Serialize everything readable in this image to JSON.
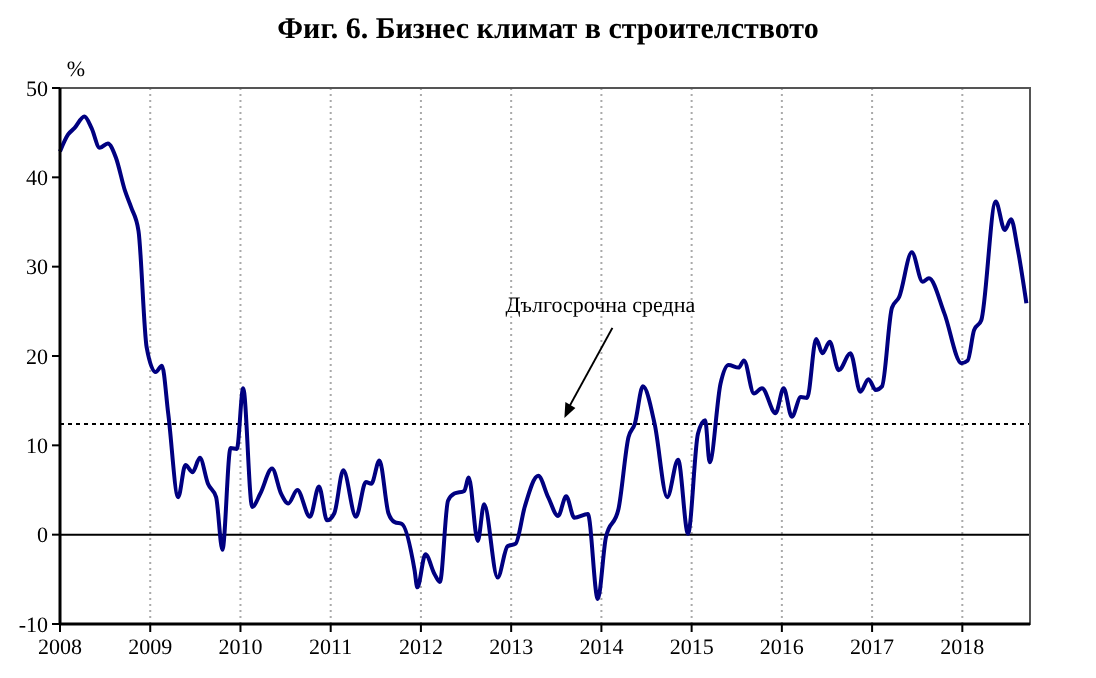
{
  "chart_data": {
    "type": "line",
    "title": "Фиг. 6. Бизнес климат в строителството",
    "ylabel": "%",
    "x": [
      2008.0,
      2008.09,
      2008.16,
      2008.27,
      2008.35,
      2008.44,
      2008.53,
      2008.62,
      2008.72,
      2008.79,
      2008.87,
      2008.96,
      2009.06,
      2009.13,
      2009.2,
      2009.31,
      2009.39,
      2009.47,
      2009.55,
      2009.64,
      2009.73,
      2009.8,
      2009.89,
      2009.96,
      2010.03,
      2010.13,
      2010.22,
      2010.35,
      2010.45,
      2010.53,
      2010.63,
      2010.77,
      2010.87,
      2010.96,
      2011.04,
      2011.14,
      2011.28,
      2011.39,
      2011.45,
      2011.54,
      2011.64,
      2011.71,
      2011.79,
      2011.93,
      2011.96,
      2012.05,
      2012.15,
      2012.21,
      2012.3,
      2012.37,
      2012.48,
      2012.53,
      2012.63,
      2012.7,
      2012.85,
      2012.96,
      2013.05,
      2013.15,
      2013.3,
      2013.41,
      2013.52,
      2013.61,
      2013.7,
      2013.85,
      2013.96,
      2014.05,
      2014.19,
      2014.3,
      2014.37,
      2014.46,
      2014.59,
      2014.73,
      2014.85,
      2014.96,
      2015.07,
      2015.15,
      2015.2,
      2015.32,
      2015.41,
      2015.52,
      2015.58,
      2015.69,
      2015.78,
      2015.93,
      2016.02,
      2016.11,
      2016.21,
      2016.28,
      2016.38,
      2016.45,
      2016.53,
      2016.63,
      2016.76,
      2016.87,
      2016.96,
      2017.04,
      2017.11,
      2017.22,
      2017.3,
      2017.44,
      2017.56,
      2017.63,
      2017.8,
      2017.99,
      2018.06,
      2018.13,
      2018.21,
      2018.37,
      2018.47,
      2018.54,
      2018.61,
      2018.71
    ],
    "series": [
      {
        "color": "#000080",
        "values": [
          42.9,
          44.8,
          45.5,
          46.8,
          45.5,
          43.3,
          43.8,
          42.2,
          38.5,
          36.6,
          34,
          21,
          18.2,
          18.9,
          13.5,
          4.2,
          7.8,
          7,
          8.6,
          5.7,
          4.2,
          -1.7,
          9.7,
          9.6,
          16.4,
          3.1,
          4.6,
          7.4,
          4.6,
          3.5,
          5,
          2,
          5.4,
          1.6,
          2.4,
          7.2,
          2,
          5.9,
          5.7,
          8.3,
          2.4,
          1.4,
          1.2,
          -4,
          -5.9,
          -2.2,
          -4.4,
          -5.3,
          3.8,
          4.6,
          4.9,
          6.4,
          -0.7,
          3.4,
          -4.8,
          -1.3,
          -1,
          3.1,
          6.6,
          4.2,
          2.1,
          4.3,
          1.9,
          2.3,
          -7.2,
          -0.3,
          2.9,
          10.9,
          12.4,
          16.6,
          12.4,
          4.2,
          8.4,
          0.1,
          11.3,
          12.8,
          8.1,
          16.9,
          19,
          18.7,
          19.5,
          15.8,
          16.4,
          13.6,
          16.4,
          13.2,
          15.4,
          15.3,
          21.9,
          20.3,
          21.6,
          18.4,
          20.3,
          16,
          17.4,
          16.2,
          16.6,
          25.4,
          26.6,
          31.6,
          28.3,
          28.7,
          24.8,
          19.2,
          19.5,
          22.9,
          24,
          37.3,
          34.1,
          35.3,
          32.2,
          25.9
        ]
      }
    ],
    "xlim": [
      2008,
      2018.75
    ],
    "xticks": [
      2008,
      2009,
      2010,
      2011,
      2012,
      2013,
      2014,
      2015,
      2016,
      2017,
      2018
    ],
    "ylim": [
      -10,
      50
    ],
    "yticks": [
      -10,
      0,
      10,
      20,
      30,
      40,
      50
    ],
    "grid": "x",
    "line_style": "solid",
    "marker": "none",
    "ref_lines": [
      {
        "axis": "y",
        "value": 12.4,
        "label": "Дългосрочна средна",
        "color": "#000000",
        "line_style": "dotted"
      },
      {
        "axis": "y",
        "value": 0,
        "color": "#000000",
        "line_style": "solid"
      }
    ]
  }
}
